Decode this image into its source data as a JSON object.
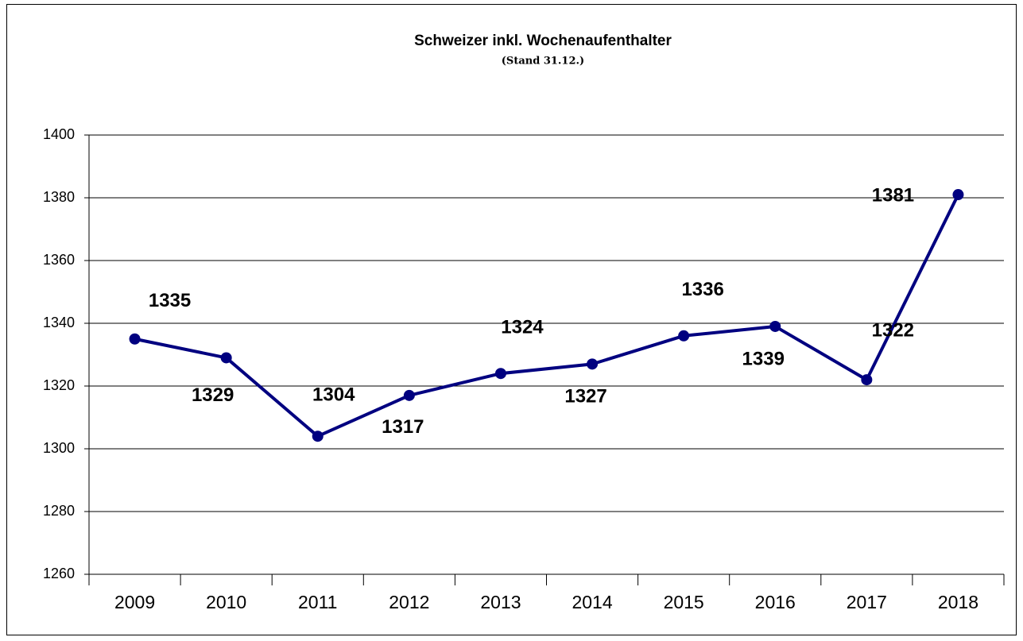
{
  "chart_data": {
    "type": "line",
    "title": "Schweizer inkl. Wochenaufenthalter",
    "subtitle": "(Stand 31.12.)",
    "categories": [
      "2009",
      "2010",
      "2011",
      "2012",
      "2013",
      "2014",
      "2015",
      "2016",
      "2017",
      "2018"
    ],
    "series": [
      {
        "name": "Schweizer inkl. Wochenaufenthalter",
        "color": "#000080",
        "values": [
          1335,
          1329,
          1304,
          1317,
          1324,
          1327,
          1336,
          1339,
          1322,
          1381
        ]
      }
    ],
    "ylim": [
      1260,
      1400
    ],
    "yticks": [
      1260,
      1280,
      1300,
      1320,
      1340,
      1360,
      1380,
      1400
    ],
    "grid": true
  }
}
